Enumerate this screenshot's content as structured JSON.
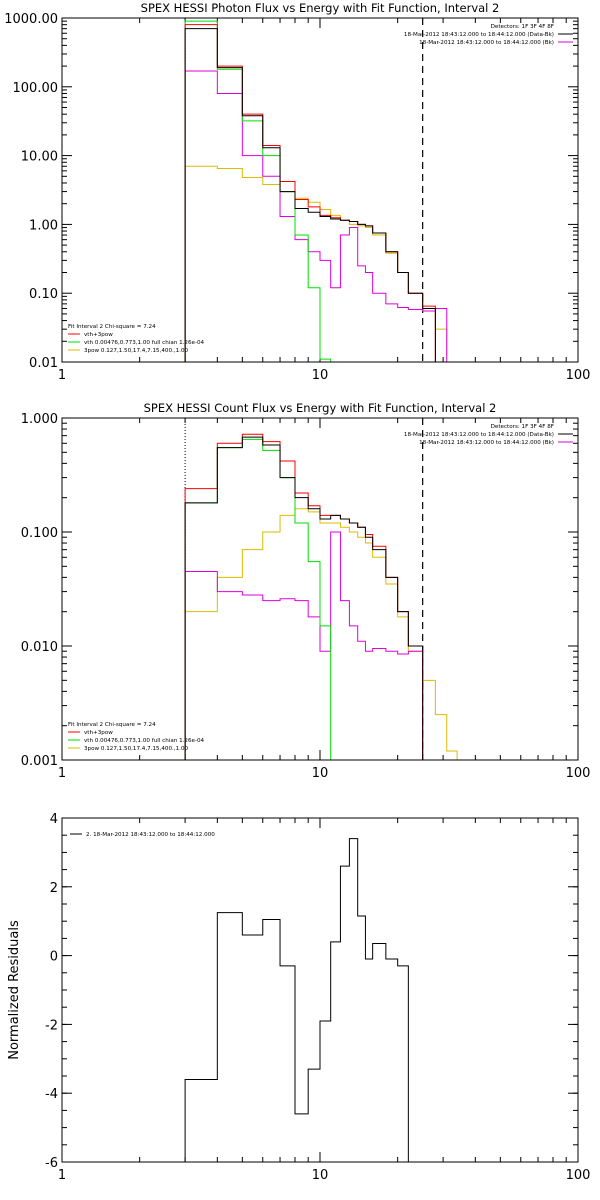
{
  "chart_data": [
    {
      "type": "line",
      "title": "SPEX HESSI Photon Flux vs Energy with Fit Function, Interval 2",
      "xlabel": "",
      "ylabel": "",
      "xscale": "log",
      "yscale": "log",
      "xlim": [
        1,
        100
      ],
      "ylim": [
        0.01,
        1000
      ],
      "xticks": [
        {
          "v": 1,
          "label": "1"
        },
        {
          "v": 10,
          "label": "10"
        },
        {
          "v": 100,
          "label": "100"
        }
      ],
      "yticks": [
        {
          "v": 0.01,
          "label": "0.01"
        },
        {
          "v": 0.1,
          "label": "0.10"
        },
        {
          "v": 1,
          "label": "1.00"
        },
        {
          "v": 10,
          "label": "10.00"
        },
        {
          "v": 100,
          "label": "100.00"
        },
        {
          "v": 1000,
          "label": "1000.00"
        }
      ],
      "vline_dotted": 3.0,
      "vline_dashed": 25.0,
      "info_right": [
        "Detectors: 1F 3F 4F 8F",
        "18-Mar-2012 18:43:12.000 to 18:44:12.000 (Data-Bk)",
        "18-Mar-2012 18:43:12.000 to 18:44:12.000 (Bk)"
      ],
      "legend_left": [
        "Fit Interval 2   Chi-square = 7.24",
        "vth+3pow",
        "vth 0.00476,0.773,1.00   full chian 1.26e-04",
        "3pow 0.127,1.50,17.4,7.15,400.,1.00"
      ],
      "colors": {
        "data": "#000000",
        "fit": "#ff0000",
        "vth": "#00dd00",
        "pow": "#ddbb00",
        "bk": "#dd00dd"
      },
      "edges": [
        3,
        4,
        5,
        6,
        7,
        8,
        9,
        10,
        11,
        12,
        13,
        14,
        15,
        16,
        18,
        20,
        22,
        25,
        28,
        31
      ],
      "series": [
        {
          "key": "data",
          "values": [
            700,
            190,
            38,
            13,
            3.0,
            1.7,
            1.5,
            1.3,
            1.2,
            1.15,
            1.1,
            1.0,
            0.95,
            0.75,
            0.4,
            0.2,
            0.1,
            0.06
          ]
        },
        {
          "key": "fit",
          "values": [
            800,
            200,
            40,
            14,
            4.2,
            2.3,
            1.8,
            1.35,
            1.25,
            1.15,
            1.1,
            1.0,
            0.95,
            0.75,
            0.4,
            0.2,
            0.1,
            0.065
          ]
        },
        {
          "key": "vth",
          "values": [
            900,
            180,
            32,
            10,
            3.0,
            0.7,
            0.12,
            0.011
          ]
        },
        {
          "key": "pow",
          "values": [
            7.0,
            6.5,
            4.8,
            3.8,
            3.0,
            2.4,
            2.1,
            1.65,
            1.35,
            1.15,
            1.0,
            0.95,
            0.9,
            0.7,
            0.38,
            0.2,
            0.1,
            0.055,
            0.03,
            0.012
          ]
        },
        {
          "key": "bk",
          "values": [
            170,
            80,
            10,
            5,
            1.3,
            0.6,
            0.4,
            0.3,
            0.12,
            0.7,
            0.9,
            0.25,
            0.2,
            0.1,
            0.07,
            0.062,
            0.058,
            0.055,
            0.06
          ]
        }
      ]
    },
    {
      "type": "line",
      "title": "SPEX HESSI Count Flux vs Energy with Fit Function, Interval 2",
      "xlabel": "",
      "ylabel": "",
      "xscale": "log",
      "yscale": "log",
      "xlim": [
        1,
        100
      ],
      "ylim": [
        0.001,
        1
      ],
      "xticks": [
        {
          "v": 1,
          "label": "1"
        },
        {
          "v": 10,
          "label": "10"
        },
        {
          "v": 100,
          "label": "100"
        }
      ],
      "yticks": [
        {
          "v": 0.001,
          "label": "0.001"
        },
        {
          "v": 0.01,
          "label": "0.010"
        },
        {
          "v": 0.1,
          "label": "0.100"
        },
        {
          "v": 1,
          "label": "1.000"
        }
      ],
      "vline_dotted": 3.0,
      "vline_dashed": 25.0,
      "info_right": [
        "Detectors: 1F 3F 4F 8F",
        "18-Mar-2012 18:43:12.000 to 18:44:12.000 (Data-Bk)",
        "18-Mar-2012 18:43:12.000 to 18:44:12.000 (Bk)"
      ],
      "legend_left": [
        "Fit Interval 2   Chi-square = 7.24",
        "vth+3pow",
        "vth 0.00476,0.773,1.00   full chian 1.26e-04",
        "3pow 0.127,1.50,17.4,7.15,400.,1.00"
      ],
      "colors": {
        "data": "#000000",
        "fit": "#ff0000",
        "vth": "#00dd00",
        "pow": "#ddbb00",
        "bk": "#dd00dd"
      },
      "edges": [
        3,
        4,
        5,
        6,
        7,
        8,
        9,
        10,
        11,
        12,
        13,
        14,
        15,
        16,
        18,
        20,
        22,
        25,
        28,
        31,
        34
      ],
      "series": [
        {
          "key": "data",
          "values": [
            0.18,
            0.55,
            0.68,
            0.58,
            0.3,
            0.2,
            0.16,
            0.13,
            0.14,
            0.13,
            0.12,
            0.11,
            0.09,
            0.07,
            0.04,
            0.02,
            0.01
          ]
        },
        {
          "key": "fit",
          "values": [
            0.24,
            0.6,
            0.72,
            0.62,
            0.42,
            0.22,
            0.17,
            0.14,
            0.14,
            0.13,
            0.12,
            0.11,
            0.095,
            0.075,
            0.04,
            0.02,
            0.01
          ]
        },
        {
          "key": "vth",
          "values": [
            0.18,
            0.55,
            0.65,
            0.52,
            0.3,
            0.12,
            0.055,
            0.015,
            0.0009
          ]
        },
        {
          "key": "pow",
          "values": [
            0.02,
            0.04,
            0.07,
            0.1,
            0.14,
            0.16,
            0.15,
            0.12,
            0.12,
            0.11,
            0.1,
            0.09,
            0.08,
            0.06,
            0.035,
            0.018,
            0.009,
            0.005,
            0.0025,
            0.0012
          ]
        },
        {
          "key": "bk",
          "values": [
            0.045,
            0.03,
            0.028,
            0.025,
            0.026,
            0.025,
            0.018,
            0.009,
            0.1,
            0.025,
            0.015,
            0.011,
            0.009,
            0.0095,
            0.009,
            0.0085,
            0.009
          ]
        }
      ]
    },
    {
      "type": "line",
      "title": "",
      "xlabel": "",
      "ylabel": "Normalized Residuals",
      "xscale": "log",
      "yscale": "linear",
      "xlim": [
        1,
        100
      ],
      "ylim": [
        -6,
        4
      ],
      "xticks": [
        {
          "v": 1,
          "label": "1"
        },
        {
          "v": 10,
          "label": "10"
        },
        {
          "v": 100,
          "label": "100"
        }
      ],
      "yticks": [
        {
          "v": -6,
          "label": "-6"
        },
        {
          "v": -4,
          "label": "-4"
        },
        {
          "v": -2,
          "label": "-2"
        },
        {
          "v": 0,
          "label": "0"
        },
        {
          "v": 2,
          "label": "2"
        },
        {
          "v": 4,
          "label": "4"
        }
      ],
      "legend_left": [
        "2. 18-Mar-2012 18:43:12.000 to 18:44:12.000"
      ],
      "colors": {
        "data": "#000000"
      },
      "edges": [
        3,
        4,
        5,
        6,
        7,
        8,
        9,
        10,
        11,
        12,
        13,
        14,
        15,
        16,
        18,
        20,
        22,
        25
      ],
      "series": [
        {
          "key": "data",
          "values": [
            -3.6,
            1.25,
            0.6,
            1.05,
            -0.3,
            -4.6,
            -3.3,
            -1.9,
            0.4,
            2.6,
            3.4,
            1.15,
            -0.1,
            0.35,
            -0.1,
            -0.3
          ]
        }
      ]
    }
  ]
}
